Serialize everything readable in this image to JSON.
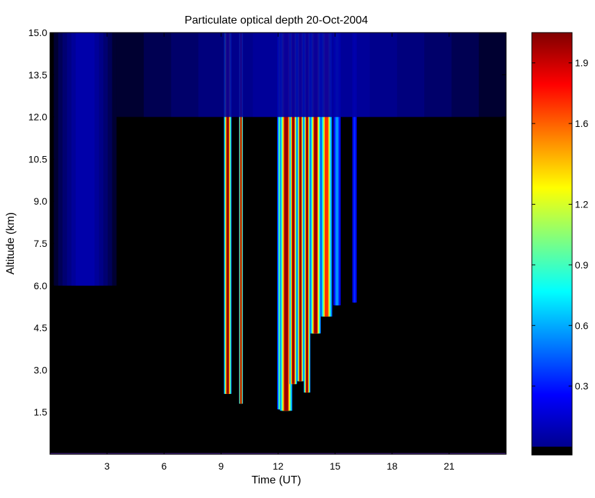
{
  "chart_data": {
    "type": "heatmap",
    "title": "Particulate optical depth  20-Oct-2004",
    "xlabel": "Time (UT)",
    "ylabel": "Altitude (km)",
    "xlim": [
      0,
      24
    ],
    "ylim": [
      0,
      15
    ],
    "x_ticks": [
      3,
      6,
      9,
      12,
      15,
      18,
      21
    ],
    "x_tick_labels": [
      "3",
      "6",
      "9",
      "12",
      "15",
      "18",
      "21"
    ],
    "y_ticks": [
      1.5,
      3.0,
      4.5,
      6.0,
      7.5,
      9.0,
      10.5,
      12.0,
      13.5,
      15.0
    ],
    "y_tick_labels": [
      "1.5",
      "3.0",
      "4.5",
      "6.0",
      "7.5",
      "9.0",
      "10.5",
      "12.0",
      "13.5",
      "15.0"
    ],
    "colorbar": {
      "range": [
        0,
        2.05
      ],
      "ticks": [
        0.3,
        0.6,
        0.9,
        1.2,
        1.6,
        1.9
      ],
      "tick_labels": [
        "0.3",
        "0.6",
        "0.9",
        "1.2",
        "1.6",
        "1.9"
      ],
      "colormap": "jet",
      "background_color": "#000000"
    },
    "grid": false,
    "plumes": [
      {
        "t_start": 9.15,
        "t_end": 9.55,
        "base_km": 2.15,
        "peak": 2.0
      },
      {
        "t_start": 9.95,
        "t_end": 10.15,
        "base_km": 1.8,
        "peak": 2.0
      },
      {
        "t_start": 11.95,
        "t_end": 12.25,
        "base_km": 1.6,
        "peak": 1.0
      },
      {
        "t_start": 12.1,
        "t_end": 12.75,
        "base_km": 1.55,
        "peak": 2.0
      },
      {
        "t_start": 12.6,
        "t_end": 13.0,
        "base_km": 2.5,
        "peak": 2.0
      },
      {
        "t_start": 13.0,
        "t_end": 13.35,
        "base_km": 2.6,
        "peak": 2.0
      },
      {
        "t_start": 13.35,
        "t_end": 13.7,
        "base_km": 2.2,
        "peak": 2.0
      },
      {
        "t_start": 13.7,
        "t_end": 14.25,
        "base_km": 4.3,
        "peak": 2.0
      },
      {
        "t_start": 14.25,
        "t_end": 14.85,
        "base_km": 4.9,
        "peak": 1.7
      },
      {
        "t_start": 14.9,
        "t_end": 15.3,
        "base_km": 5.3,
        "peak": 0.55
      },
      {
        "t_start": 15.9,
        "t_end": 16.15,
        "base_km": 5.4,
        "peak": 0.35
      },
      {
        "t_start": 0.2,
        "t_end": 3.5,
        "base_km": 6.0,
        "peak": 0.15
      },
      {
        "t_start": 3.5,
        "t_end": 24.0,
        "base_km": 12.0,
        "peak": 0.1
      }
    ]
  }
}
